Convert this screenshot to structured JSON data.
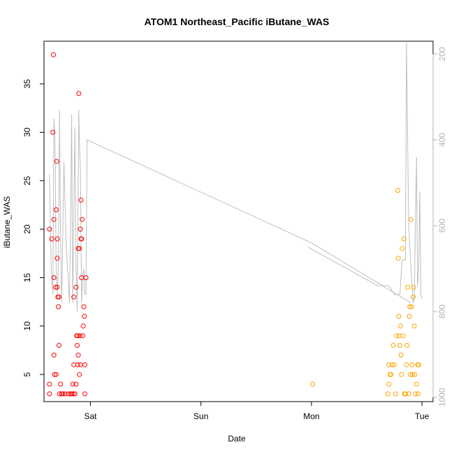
{
  "chart_data": {
    "type": "scatter",
    "title": "ATOM1 Northeast_Pacific iButane_WAS",
    "xlabel": "Date",
    "ylabel": "iButane_WAS",
    "x_ticks": [
      "Sat",
      "Sun",
      "Mon",
      "Tue"
    ],
    "x_tick_days": [
      1,
      2,
      3,
      4
    ],
    "xlim_days": [
      0.58,
      4.1
    ],
    "ylim": [
      2.2,
      39.4
    ],
    "y_ticks": [
      5,
      10,
      15,
      20,
      25,
      30,
      35
    ],
    "y2_ticks": [
      200,
      400,
      600,
      800,
      1000
    ],
    "y2lim": [
      1010,
      170
    ],
    "grid": false,
    "colors": {
      "series_early": "#ff0000",
      "series_late": "#ffa500",
      "altitude_line": "#bebebe",
      "axis": "#000000",
      "right_axis": "#b3b3b3"
    },
    "series": [
      {
        "name": "",
        "color": "#ff0000",
        "points": [
          [
            0.63,
            4
          ],
          [
            0.63,
            3
          ],
          [
            0.63,
            20
          ],
          [
            0.65,
            19
          ],
          [
            0.66,
            30
          ],
          [
            0.665,
            38
          ],
          [
            0.67,
            15
          ],
          [
            0.67,
            21
          ],
          [
            0.67,
            7
          ],
          [
            0.675,
            5
          ],
          [
            0.685,
            14
          ],
          [
            0.69,
            22
          ],
          [
            0.69,
            5
          ],
          [
            0.695,
            27
          ],
          [
            0.7,
            14
          ],
          [
            0.7,
            17
          ],
          [
            0.7,
            19
          ],
          [
            0.705,
            13
          ],
          [
            0.71,
            12
          ],
          [
            0.715,
            8
          ],
          [
            0.715,
            13
          ],
          [
            0.72,
            3
          ],
          [
            0.73,
            4
          ],
          [
            0.74,
            3
          ],
          [
            0.75,
            3
          ],
          [
            0.77,
            3
          ],
          [
            0.8,
            3
          ],
          [
            0.82,
            3
          ],
          [
            0.83,
            3
          ],
          [
            0.84,
            4
          ],
          [
            0.845,
            3
          ],
          [
            0.85,
            13
          ],
          [
            0.85,
            6
          ],
          [
            0.86,
            3
          ],
          [
            0.87,
            4
          ],
          [
            0.87,
            14
          ],
          [
            0.875,
            9
          ],
          [
            0.88,
            8
          ],
          [
            0.885,
            6
          ],
          [
            0.885,
            9
          ],
          [
            0.89,
            7
          ],
          [
            0.89,
            18
          ],
          [
            0.895,
            34
          ],
          [
            0.9,
            5
          ],
          [
            0.9,
            18
          ],
          [
            0.905,
            9
          ],
          [
            0.91,
            6
          ],
          [
            0.91,
            20
          ],
          [
            0.915,
            23
          ],
          [
            0.915,
            19
          ],
          [
            0.92,
            19
          ],
          [
            0.92,
            15
          ],
          [
            0.925,
            21
          ],
          [
            0.93,
            9
          ],
          [
            0.935,
            10
          ],
          [
            0.94,
            12
          ],
          [
            0.945,
            11
          ],
          [
            0.95,
            3
          ],
          [
            0.95,
            6
          ],
          [
            0.96,
            15
          ]
        ]
      },
      {
        "name": "",
        "color": "#ffa500",
        "points": [
          [
            3.01,
            4
          ],
          [
            3.69,
            3
          ],
          [
            3.7,
            6
          ],
          [
            3.7,
            4
          ],
          [
            3.71,
            5
          ],
          [
            3.72,
            5
          ],
          [
            3.73,
            6
          ],
          [
            3.74,
            8
          ],
          [
            3.75,
            6
          ],
          [
            3.76,
            3
          ],
          [
            3.77,
            9
          ],
          [
            3.78,
            24
          ],
          [
            3.785,
            17
          ],
          [
            3.79,
            11
          ],
          [
            3.795,
            9
          ],
          [
            3.8,
            8
          ],
          [
            3.805,
            10
          ],
          [
            3.81,
            7
          ],
          [
            3.815,
            5
          ],
          [
            3.82,
            18
          ],
          [
            3.83,
            9
          ],
          [
            3.835,
            19
          ],
          [
            3.84,
            3
          ],
          [
            3.85,
            3
          ],
          [
            3.86,
            6
          ],
          [
            3.865,
            8
          ],
          [
            3.87,
            14
          ],
          [
            3.88,
            3
          ],
          [
            3.885,
            11
          ],
          [
            3.89,
            12
          ],
          [
            3.895,
            5
          ],
          [
            3.9,
            21
          ],
          [
            3.905,
            12
          ],
          [
            3.91,
            6
          ],
          [
            3.915,
            5
          ],
          [
            3.92,
            13
          ],
          [
            3.925,
            14
          ],
          [
            3.93,
            10
          ],
          [
            3.935,
            5
          ],
          [
            3.94,
            3
          ],
          [
            3.95,
            4
          ],
          [
            3.96,
            6
          ],
          [
            3.965,
            3
          ],
          [
            3.97,
            6
          ]
        ]
      }
    ],
    "altitude_line": [
      [
        0.63,
        480
      ],
      [
        0.645,
        700
      ],
      [
        0.66,
        760
      ],
      [
        0.67,
        350
      ],
      [
        0.68,
        410
      ],
      [
        0.69,
        700
      ],
      [
        0.7,
        760
      ],
      [
        0.71,
        690
      ],
      [
        0.72,
        330
      ],
      [
        0.73,
        620
      ],
      [
        0.74,
        780
      ],
      [
        0.76,
        450
      ],
      [
        0.78,
        640
      ],
      [
        0.81,
        780
      ],
      [
        0.82,
        600
      ],
      [
        0.83,
        340
      ],
      [
        0.84,
        780
      ],
      [
        0.86,
        370
      ],
      [
        0.87,
        700
      ],
      [
        0.88,
        800
      ],
      [
        0.895,
        330
      ],
      [
        0.9,
        400
      ],
      [
        0.91,
        470
      ],
      [
        0.92,
        780
      ],
      [
        0.93,
        720
      ],
      [
        0.94,
        700
      ],
      [
        0.95,
        760
      ],
      [
        0.96,
        760
      ],
      [
        0.97,
        400
      ],
      [
        3.0,
        640
      ],
      [
        3.9,
        780
      ],
      [
        2.97,
        650
      ],
      [
        3.6,
        740
      ],
      [
        3.7,
        740
      ],
      [
        3.75,
        760
      ],
      [
        3.8,
        760
      ],
      [
        3.82,
        680
      ],
      [
        3.85,
        680
      ],
      [
        3.86,
        170
      ],
      [
        3.87,
        400
      ],
      [
        3.88,
        600
      ],
      [
        3.9,
        700
      ],
      [
        3.92,
        780
      ],
      [
        3.93,
        770
      ],
      [
        3.94,
        600
      ],
      [
        3.95,
        440
      ],
      [
        3.96,
        740
      ],
      [
        3.97,
        700
      ],
      [
        3.98,
        520
      ],
      [
        3.99,
        760
      ],
      [
        4.0,
        770
      ]
    ]
  }
}
